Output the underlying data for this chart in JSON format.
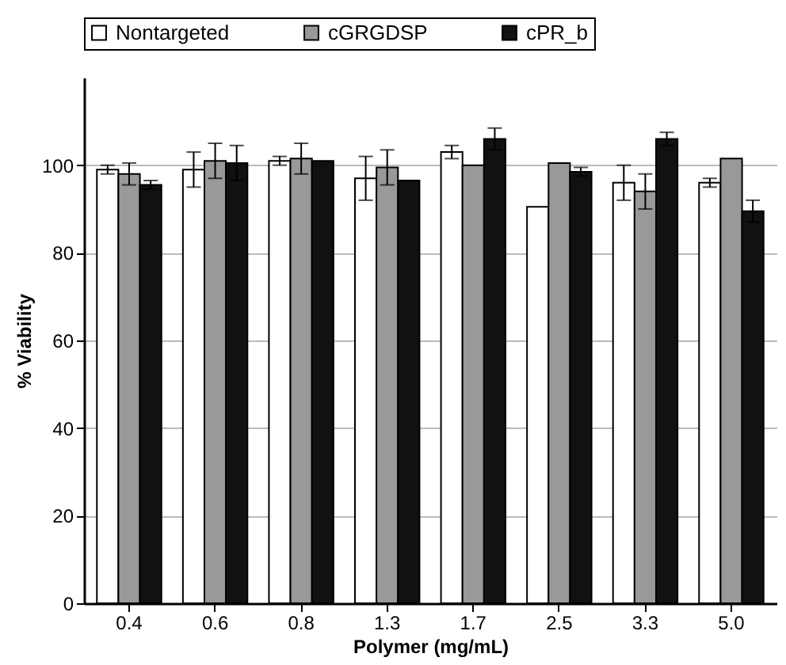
{
  "chart_data": {
    "type": "bar",
    "xlabel": "Polymer (mg/mL)",
    "ylabel": "% Viability",
    "categories": [
      "0.4",
      "0.6",
      "0.8",
      "1.3",
      "1.7",
      "2.5",
      "3.3",
      "5.0"
    ],
    "series": [
      {
        "name": "Nontargeted",
        "color": "#ffffff",
        "values": [
          99,
          99,
          101,
          97,
          103,
          90.5,
          96,
          96
        ],
        "errors": [
          1,
          4,
          1,
          5,
          1.5,
          null,
          4,
          1
        ]
      },
      {
        "name": "cGRGDSP",
        "color": "#999999",
        "values": [
          98,
          101,
          101.5,
          99.5,
          100,
          100.5,
          94,
          101.5
        ],
        "errors": [
          2.5,
          4,
          3.5,
          4,
          null,
          null,
          4,
          null
        ]
      },
      {
        "name": "cPR_b",
        "color": "#111111",
        "values": [
          95.5,
          100.5,
          101,
          96.5,
          106,
          98.5,
          106,
          89.5
        ],
        "errors": [
          1,
          4,
          null,
          null,
          2.5,
          1,
          1.5,
          2.5
        ]
      }
    ],
    "ylim": [
      0,
      120
    ],
    "yticks": [
      0,
      20,
      40,
      60,
      80,
      100
    ],
    "grid": "y",
    "legend": "top"
  }
}
